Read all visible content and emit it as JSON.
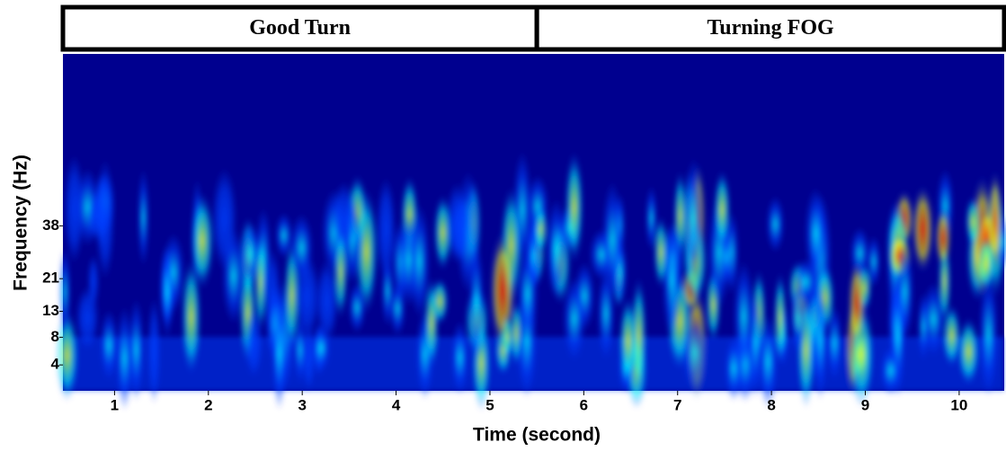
{
  "chart_data": {
    "type": "spectrogram",
    "xlabel": "Time (second)",
    "ylabel": "Frequency (Hz)",
    "segments": [
      {
        "label": "Good Turn",
        "range": [
          0.45,
          5.5
        ]
      },
      {
        "label": "Turning FOG",
        "range": [
          5.5,
          10.48
        ]
      }
    ],
    "xlim": [
      0.45,
      10.48
    ],
    "xticks": [
      1,
      2,
      3,
      4,
      5,
      6,
      7,
      8,
      9,
      10
    ],
    "ylim": [
      1.5,
      128
    ],
    "yticks": [
      4,
      8,
      13,
      21,
      38
    ],
    "yscale": "sqrt",
    "colormap": [
      "#00008f",
      "#0040ff",
      "#00ffff",
      "#ffff00",
      "#ff0000"
    ]
  }
}
